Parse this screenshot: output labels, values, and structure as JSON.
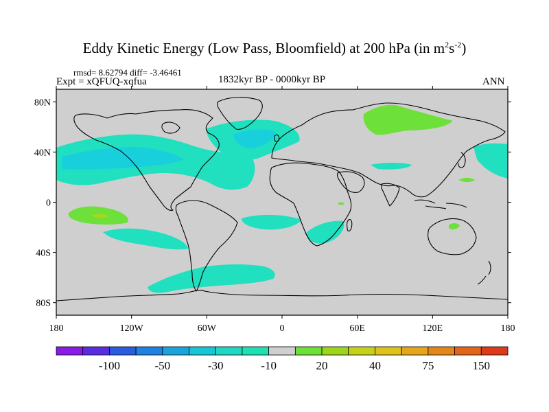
{
  "title": {
    "main": "Eddy Kinetic Energy (Low Pass, Bloomfield) at 200 hPa (in m",
    "sup1": "2",
    "mid": "s",
    "sup2": "-2",
    "end": ")"
  },
  "stats_text": "rmsd= 8.62794  diff= -3.46461",
  "expt_text": "Expt = xQFUQ-xqfua",
  "period_text": "1832kyr BP - 0000kyr BP",
  "season_text": "ANN",
  "map": {
    "projection": "cylindrical-equidistant",
    "lon_range": [
      -180,
      180
    ],
    "lat_range": [
      -90,
      90
    ],
    "land_ocean_fill": "#cfcfcf",
    "coastline_color": "#000000",
    "lat_ticks": [
      {
        "value": 80,
        "label": "80N"
      },
      {
        "value": 40,
        "label": "40N"
      },
      {
        "value": 0,
        "label": "0"
      },
      {
        "value": -40,
        "label": "40S"
      },
      {
        "value": -80,
        "label": "80S"
      }
    ],
    "lon_ticks": [
      {
        "value": -180,
        "label": "180"
      },
      {
        "value": -120,
        "label": "120W"
      },
      {
        "value": -60,
        "label": "60W"
      },
      {
        "value": 0,
        "label": "0"
      },
      {
        "value": 60,
        "label": "60E"
      },
      {
        "value": 120,
        "label": "120E"
      },
      {
        "value": 180,
        "label": "180"
      }
    ]
  },
  "colorbar": {
    "colors": [
      "#8a1ae6",
      "#5a2ee0",
      "#2a5ce0",
      "#1f82e0",
      "#1aa4dc",
      "#16c6d6",
      "#20d6c4",
      "#1ee0b0",
      "#cfcfcf",
      "#6ee03a",
      "#9cd61a",
      "#c6d21a",
      "#dcc21a",
      "#e4a61a",
      "#e4861a",
      "#e2661a",
      "#dc3a1a"
    ],
    "labels": [
      {
        "after_box": 2,
        "text": "-100"
      },
      {
        "after_box": 4,
        "text": "-50"
      },
      {
        "after_box": 6,
        "text": "-30"
      },
      {
        "after_box": 8,
        "text": "-10"
      },
      {
        "after_box": 10,
        "text": "20"
      },
      {
        "after_box": 12,
        "text": "40"
      },
      {
        "after_box": 14,
        "text": "75"
      },
      {
        "after_box": 16,
        "text": "150"
      }
    ]
  },
  "colors": {
    "negative_light": "#20e0c0",
    "negative_medium": "#18d0dc",
    "positive_light": "#6ee03a",
    "positive_medium": "#a8d81a"
  }
}
